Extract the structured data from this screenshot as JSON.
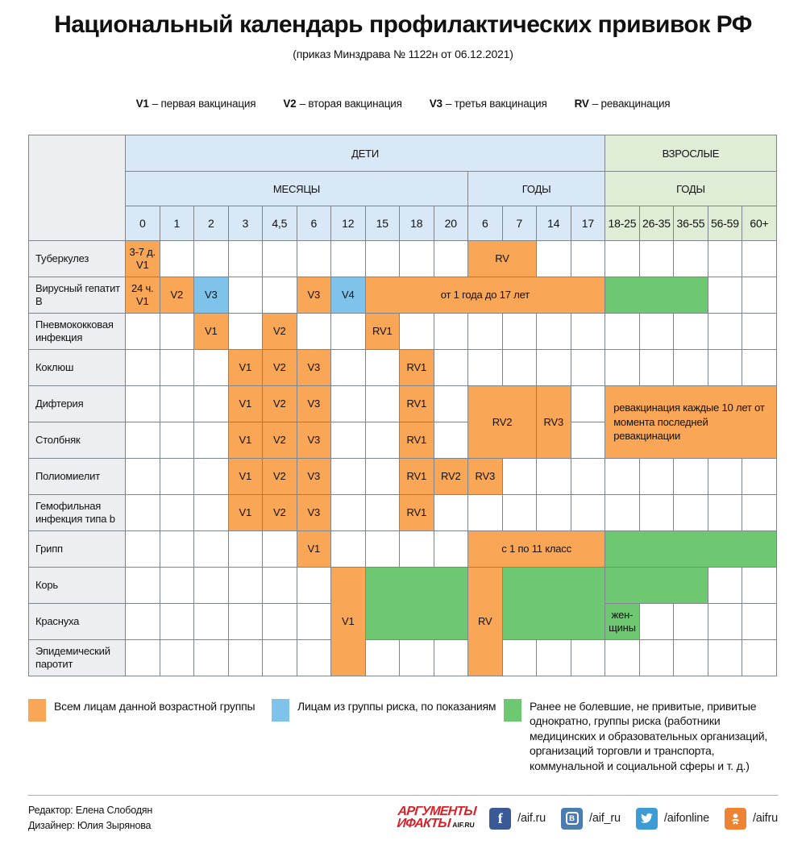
{
  "title": "Национальный календарь профилактических прививок РФ",
  "subtitle": "(приказ Минздрава № 1122н от 06.12.2021)",
  "abbr_legend": [
    {
      "key": "V1",
      "desc": "– первая вакцинация"
    },
    {
      "key": "V2",
      "desc": "– вторая вакцинация"
    },
    {
      "key": "V3",
      "desc": "– третья вакцинация"
    },
    {
      "key": "RV",
      "desc": "– ревакцинация"
    }
  ],
  "colors": {
    "orange": "#F9A656",
    "blue": "#7FC3EB",
    "green": "#6EC871",
    "header_blue": "#D8E8F7",
    "header_green": "#DFEDD6",
    "label_bg": "#EDEEF2",
    "border": "#7E848C",
    "logo_red": "#D6232B",
    "fb": "#3A5A97",
    "vk": "#4E7CB0",
    "tw": "#3D9BD5",
    "ok": "#EE8433"
  },
  "chart_data": {
    "type": "table",
    "title": "Национальный календарь профилактических прививок РФ",
    "header": {
      "children_group": "ДЕТИ",
      "adults_group": "ВЗРОСЛЫЕ",
      "months_label": "МЕСЯЦЫ",
      "child_years_label": "ГОДЫ",
      "adult_years_label": "ГОДЫ"
    },
    "columns": [
      "0",
      "1",
      "2",
      "3",
      "4,5",
      "6",
      "12",
      "15",
      "18",
      "20",
      "6",
      "7",
      "14",
      "17",
      "18-25",
      "26-35",
      "36-55",
      "56-59",
      "60+"
    ],
    "month_col_count": 10,
    "child_year_col_count": 4,
    "adult_col_count": 5,
    "rows": [
      {
        "label": "Туберкулез",
        "cells": [
          {
            "col": 0,
            "text": "3-7 д.\nV1",
            "color": "orange"
          },
          {
            "col": 10,
            "colspan": 2,
            "text": "RV",
            "color": "orange"
          }
        ]
      },
      {
        "label": "Вирусный гепатит B",
        "cells": [
          {
            "col": 0,
            "text": "24 ч.\nV1",
            "color": "orange"
          },
          {
            "col": 1,
            "text": "V2",
            "color": "orange"
          },
          {
            "col": 2,
            "text": "V3",
            "color": "blue"
          },
          {
            "col": 5,
            "text": "V3",
            "color": "orange"
          },
          {
            "col": 6,
            "text": "V4",
            "color": "blue"
          },
          {
            "col": 7,
            "colspan": 7,
            "text": "от 1 года до 17 лет",
            "color": "orange"
          },
          {
            "col": 14,
            "colspan": 3,
            "text": "",
            "color": "green"
          }
        ]
      },
      {
        "label": "Пневмококковая инфекция",
        "cells": [
          {
            "col": 2,
            "text": "V1",
            "color": "orange"
          },
          {
            "col": 4,
            "text": "V2",
            "color": "orange"
          },
          {
            "col": 7,
            "text": "RV1",
            "color": "orange"
          }
        ]
      },
      {
        "label": "Коклюш",
        "cells": [
          {
            "col": 3,
            "text": "V1",
            "color": "orange"
          },
          {
            "col": 4,
            "text": "V2",
            "color": "orange"
          },
          {
            "col": 5,
            "text": "V3",
            "color": "orange"
          },
          {
            "col": 8,
            "text": "RV1",
            "color": "orange"
          }
        ]
      },
      {
        "label": "Дифтерия",
        "cells": [
          {
            "col": 3,
            "text": "V1",
            "color": "orange"
          },
          {
            "col": 4,
            "text": "V2",
            "color": "orange"
          },
          {
            "col": 5,
            "text": "V3",
            "color": "orange"
          },
          {
            "col": 8,
            "text": "RV1",
            "color": "orange"
          },
          {
            "col": 10,
            "colspan": 2,
            "rowspan": 2,
            "text": "RV2",
            "color": "orange"
          },
          {
            "col": 12,
            "rowspan": 2,
            "text": "RV3",
            "color": "orange"
          },
          {
            "col": 14,
            "colspan": 5,
            "rowspan": 2,
            "align": "left",
            "text": "ревакцинация каждые 10 лет от момента последней ревакцинации",
            "color": "orange"
          }
        ]
      },
      {
        "label": "Столбняк",
        "cells": [
          {
            "col": 3,
            "text": "V1",
            "color": "orange"
          },
          {
            "col": 4,
            "text": "V2",
            "color": "orange"
          },
          {
            "col": 5,
            "text": "V3",
            "color": "orange"
          },
          {
            "col": 8,
            "text": "RV1",
            "color": "orange"
          }
        ]
      },
      {
        "label": "Полиомиелит",
        "cells": [
          {
            "col": 3,
            "text": "V1",
            "color": "orange"
          },
          {
            "col": 4,
            "text": "V2",
            "color": "orange"
          },
          {
            "col": 5,
            "text": "V3",
            "color": "orange"
          },
          {
            "col": 8,
            "text": "RV1",
            "color": "orange"
          },
          {
            "col": 9,
            "text": "RV2",
            "color": "orange"
          },
          {
            "col": 10,
            "text": "RV3",
            "color": "orange"
          }
        ]
      },
      {
        "label": "Гемофильная инфекция типа b",
        "cells": [
          {
            "col": 3,
            "text": "V1",
            "color": "orange"
          },
          {
            "col": 4,
            "text": "V2",
            "color": "orange"
          },
          {
            "col": 5,
            "text": "V3",
            "color": "orange"
          },
          {
            "col": 8,
            "text": "RV1",
            "color": "orange"
          }
        ]
      },
      {
        "label": "Грипп",
        "cells": [
          {
            "col": 5,
            "text": "V1",
            "color": "orange"
          },
          {
            "col": 10,
            "colspan": 4,
            "text": "с 1 по 11 класс",
            "color": "orange"
          },
          {
            "col": 14,
            "colspan": 5,
            "text": "",
            "color": "green"
          }
        ]
      },
      {
        "label": "Корь",
        "cells": [
          {
            "col": 6,
            "rowspan": 3,
            "text": "V1",
            "color": "orange"
          },
          {
            "col": 7,
            "colspan": 3,
            "rowspan": 2,
            "text": "",
            "color": "green"
          },
          {
            "col": 10,
            "rowspan": 3,
            "text": "RV",
            "color": "orange"
          },
          {
            "col": 11,
            "colspan": 3,
            "rowspan": 2,
            "text": "",
            "color": "green"
          },
          {
            "col": 14,
            "colspan": 3,
            "text": "",
            "color": "green"
          }
        ]
      },
      {
        "label": "Краснуха",
        "cells": [
          {
            "col": 14,
            "text": "жен-\nщины",
            "color": "green"
          }
        ]
      },
      {
        "label": "Эпидемический паротит",
        "cells": []
      }
    ]
  },
  "legend": [
    {
      "color": "orange",
      "text": "Всем лицам данной возрастной группы"
    },
    {
      "color": "blue",
      "text": "Лицам из группы риска, по показаниям"
    },
    {
      "color": "green",
      "text": "Ранее не болевшие, не привитые, привитые однократно, группы риска (работники медицинских и образовательных организаций, организаций торговли и транспорта, коммунальной и социальной сферы и т. д.)"
    }
  ],
  "footer": {
    "editor": "Редактор: Елена Слободян",
    "designer": "Дизайнер: Юлия Зырянова",
    "logo_line1": "АРГУМЕНТЫ",
    "logo_line2": "ИФАКТЫ",
    "logo_suffix": "AIF.RU",
    "socials": [
      {
        "icon": "facebook-icon",
        "handle": "/aif.ru"
      },
      {
        "icon": "vk-icon",
        "handle": "/aif_ru"
      },
      {
        "icon": "twitter-icon",
        "handle": "/aifonline"
      },
      {
        "icon": "ok-icon",
        "handle": "/aifru"
      }
    ]
  }
}
